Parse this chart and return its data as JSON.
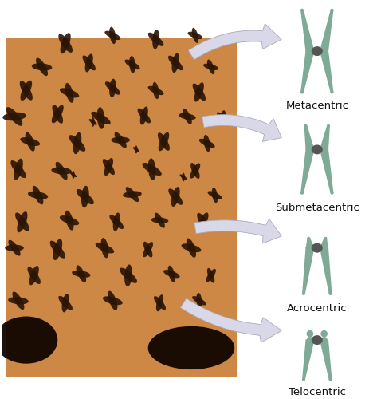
{
  "background_color": "#ffffff",
  "image_bg_color": "#CC8844",
  "chromosome_color": "#7faa96",
  "centromere_color": "#555555",
  "text_color": "#111111",
  "arrow_color": "#d8d8e8",
  "arrow_edge_color": "#aaaabb",
  "labels": [
    "Metacentric",
    "Submetacentric",
    "Acrocentric",
    "Telocentric"
  ],
  "font_size": 9.5,
  "font_family": "DejaVu Sans"
}
